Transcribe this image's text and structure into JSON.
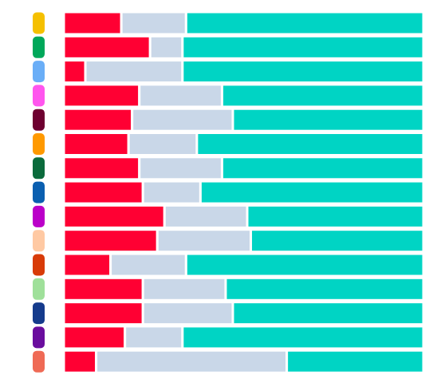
{
  "chart_data": {
    "type": "bar",
    "orientation": "horizontal",
    "stacked": true,
    "normalized": true,
    "title": "",
    "xlabel": "",
    "ylabel": "",
    "xlim": [
      0,
      1
    ],
    "grid": false,
    "legend": "none",
    "row_markers": [
      "#f5c000",
      "#00a85a",
      "#6aaef7",
      "#ff55ee",
      "#6e0030",
      "#ff9900",
      "#0b6b3c",
      "#0a5fb0",
      "#bb00c9",
      "#ffc9a3",
      "#d83b08",
      "#9fe09a",
      "#153b8c",
      "#6a0d9e",
      "#ef6a55"
    ],
    "series": [
      {
        "color": "#ff0033",
        "values": [
          0.16,
          0.24,
          0.06,
          0.21,
          0.19,
          0.18,
          0.21,
          0.22,
          0.28,
          0.26,
          0.13,
          0.22,
          0.22,
          0.17,
          0.09
        ]
      },
      {
        "color": "#c9d7e8",
        "values": [
          0.18,
          0.09,
          0.27,
          0.23,
          0.28,
          0.19,
          0.23,
          0.16,
          0.23,
          0.26,
          0.21,
          0.23,
          0.25,
          0.16,
          0.53
        ]
      },
      {
        "color": "#00d4c4",
        "values": [
          0.66,
          0.67,
          0.67,
          0.56,
          0.53,
          0.63,
          0.56,
          0.62,
          0.49,
          0.48,
          0.66,
          0.55,
          0.53,
          0.67,
          0.38
        ]
      }
    ]
  }
}
